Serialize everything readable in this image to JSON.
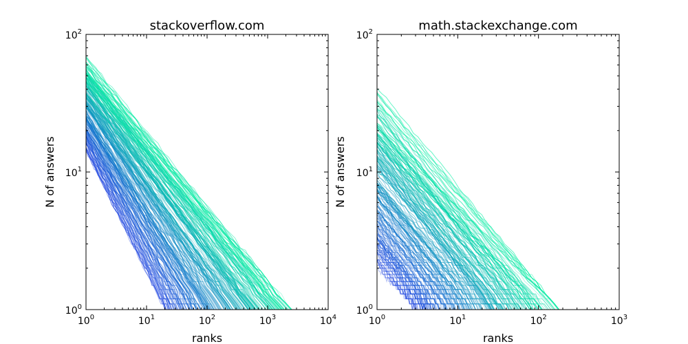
{
  "chart_data": [
    {
      "type": "line",
      "title": "stackoverflow.com",
      "xlabel": "ranks",
      "ylabel": "N of answers",
      "xscale": "log",
      "yscale": "log",
      "xlim": [
        1,
        10000
      ],
      "ylim": [
        1,
        100
      ],
      "xticks": [
        {
          "base": "10",
          "exp": "0"
        },
        {
          "base": "10",
          "exp": "1"
        },
        {
          "base": "10",
          "exp": "2"
        },
        {
          "base": "10",
          "exp": "3"
        },
        {
          "base": "10",
          "exp": "4"
        }
      ],
      "yticks": [
        {
          "base": "10",
          "exp": "0"
        },
        {
          "base": "10",
          "exp": "1"
        },
        {
          "base": "10",
          "exp": "2"
        }
      ],
      "series_description": "hundreds of rank-frequency curves, colored from blue to green",
      "color_start": "#1a3fe0",
      "color_end": "#00f0a0",
      "curve_count": 220,
      "top_value_range": [
        14,
        60
      ],
      "max_rank_range": [
        20,
        2500
      ]
    },
    {
      "type": "line",
      "title": "math.stackexchange.com",
      "xlabel": "ranks",
      "ylabel": "N of answers",
      "xscale": "log",
      "yscale": "log",
      "xlim": [
        1,
        1000
      ],
      "ylim": [
        1,
        100
      ],
      "xticks": [
        {
          "base": "10",
          "exp": "0"
        },
        {
          "base": "10",
          "exp": "1"
        },
        {
          "base": "10",
          "exp": "2"
        },
        {
          "base": "10",
          "exp": "3"
        }
      ],
      "yticks": [
        {
          "base": "10",
          "exp": "0"
        },
        {
          "base": "10",
          "exp": "1"
        },
        {
          "base": "10",
          "exp": "2"
        }
      ],
      "series_description": "hundreds of rank-frequency curves, colored from blue to green",
      "color_start": "#1a3fe0",
      "color_end": "#00f0a0",
      "curve_count": 200,
      "top_value_range": [
        2,
        30
      ],
      "max_rank_range": [
        3,
        180
      ]
    }
  ]
}
